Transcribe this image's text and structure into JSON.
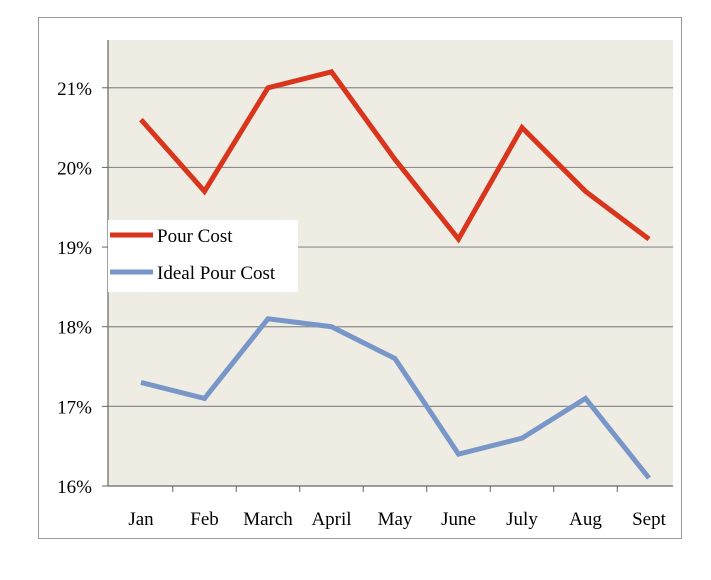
{
  "chart_data": {
    "type": "line",
    "categories": [
      "Jan",
      "Feb",
      "March",
      "April",
      "May",
      "June",
      "July",
      "Aug",
      "Sept"
    ],
    "series": [
      {
        "name": "Pour Cost",
        "color": "#d9341c",
        "values": [
          20.6,
          19.7,
          21.0,
          21.2,
          20.1,
          19.1,
          20.5,
          19.7,
          19.1
        ]
      },
      {
        "name": "Ideal Pour Cost",
        "color": "#7896c8",
        "values": [
          17.3,
          17.1,
          18.1,
          18.0,
          17.6,
          16.4,
          16.6,
          17.1,
          16.1
        ]
      }
    ],
    "yticks": [
      "16%",
      "17%",
      "18%",
      "19%",
      "20%",
      "21%"
    ],
    "ylim": [
      16,
      21.6
    ],
    "grid": true,
    "legend_position": "left, middle",
    "plot_background": "#efece4"
  }
}
